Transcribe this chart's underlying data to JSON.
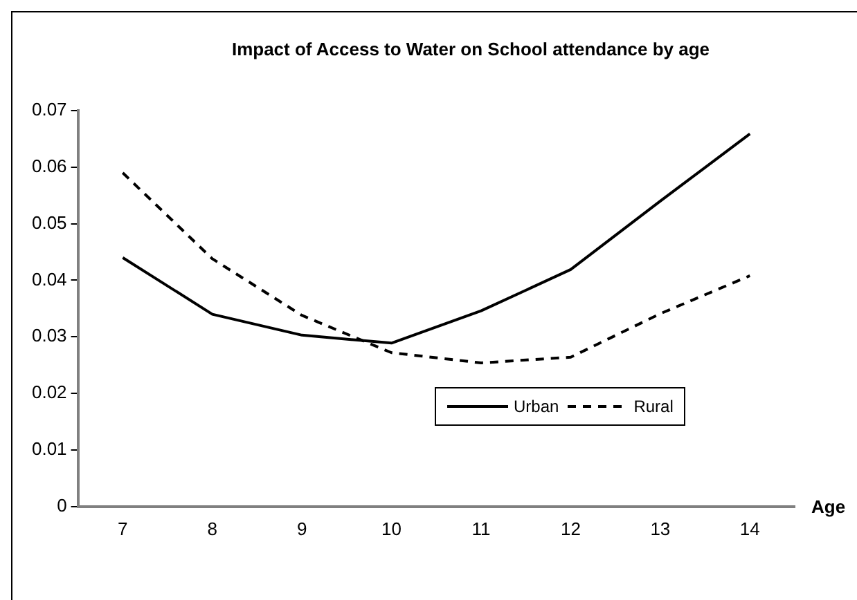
{
  "chart_data": {
    "type": "line",
    "title": "Impact of Access to Water on School attendance by age",
    "xlabel": "Age",
    "categories": [
      "7",
      "8",
      "9",
      "10",
      "11",
      "12",
      "13",
      "14"
    ],
    "series": [
      {
        "name": "Urban",
        "color": "#000000",
        "line_style": "solid",
        "values": [
          0.044,
          0.034,
          0.0303,
          0.0289,
          0.0346,
          0.0419,
          0.054,
          0.0659
        ]
      },
      {
        "name": "Rural",
        "color": "#000000",
        "line_style": "dashed",
        "values": [
          0.059,
          0.0438,
          0.0338,
          0.0272,
          0.0254,
          0.0264,
          0.0341,
          0.0408
        ]
      }
    ],
    "ylim": [
      0,
      0.07
    ],
    "yticks": [
      0,
      0.01,
      0.02,
      0.03,
      0.04,
      0.05,
      0.06,
      0.07
    ],
    "grid": false,
    "legend": "right",
    "marker": "none"
  }
}
